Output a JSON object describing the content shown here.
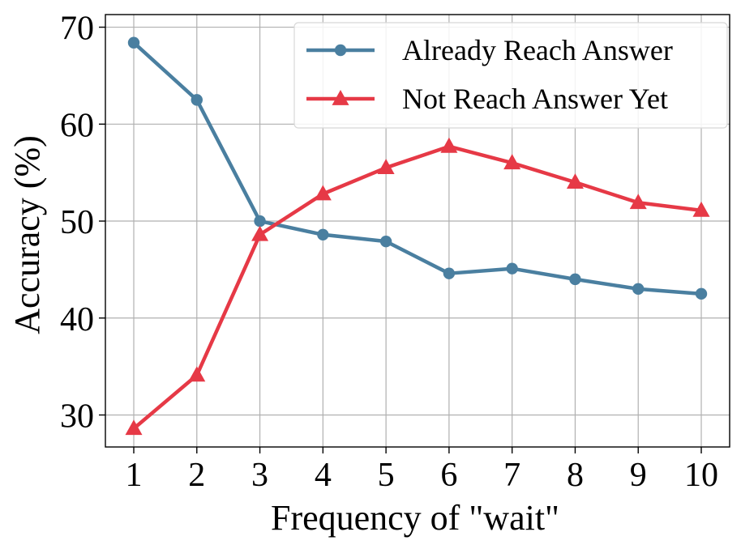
{
  "chart_data": {
    "type": "line",
    "title": "",
    "xlabel": "Frequency of \"wait\"",
    "ylabel": "Accuracy (%)",
    "x": [
      1,
      2,
      3,
      4,
      5,
      6,
      7,
      8,
      9,
      10
    ],
    "x_tick_labels": [
      "1",
      "2",
      "3",
      "4",
      "5",
      "6",
      "7",
      "8",
      "9",
      "10"
    ],
    "y_ticks": [
      30,
      40,
      50,
      60,
      70
    ],
    "y_tick_labels": [
      "30",
      "40",
      "50",
      "60",
      "70"
    ],
    "xlim": [
      0.55,
      10.45
    ],
    "ylim": [
      26.7,
      71.3
    ],
    "grid": true,
    "legend_position": "top-right",
    "series": [
      {
        "name": "Already Reach Answer",
        "color": "#4a7fa0",
        "marker": "circle",
        "values": [
          68.4,
          62.5,
          50.0,
          48.6,
          47.9,
          44.6,
          45.1,
          44.0,
          43.0,
          42.5
        ]
      },
      {
        "name": "Not Reach Answer Yet",
        "color": "#e63946",
        "marker": "triangle",
        "values": [
          28.6,
          34.1,
          48.6,
          52.8,
          55.5,
          57.7,
          56.0,
          54.0,
          51.9,
          51.1
        ]
      }
    ]
  }
}
